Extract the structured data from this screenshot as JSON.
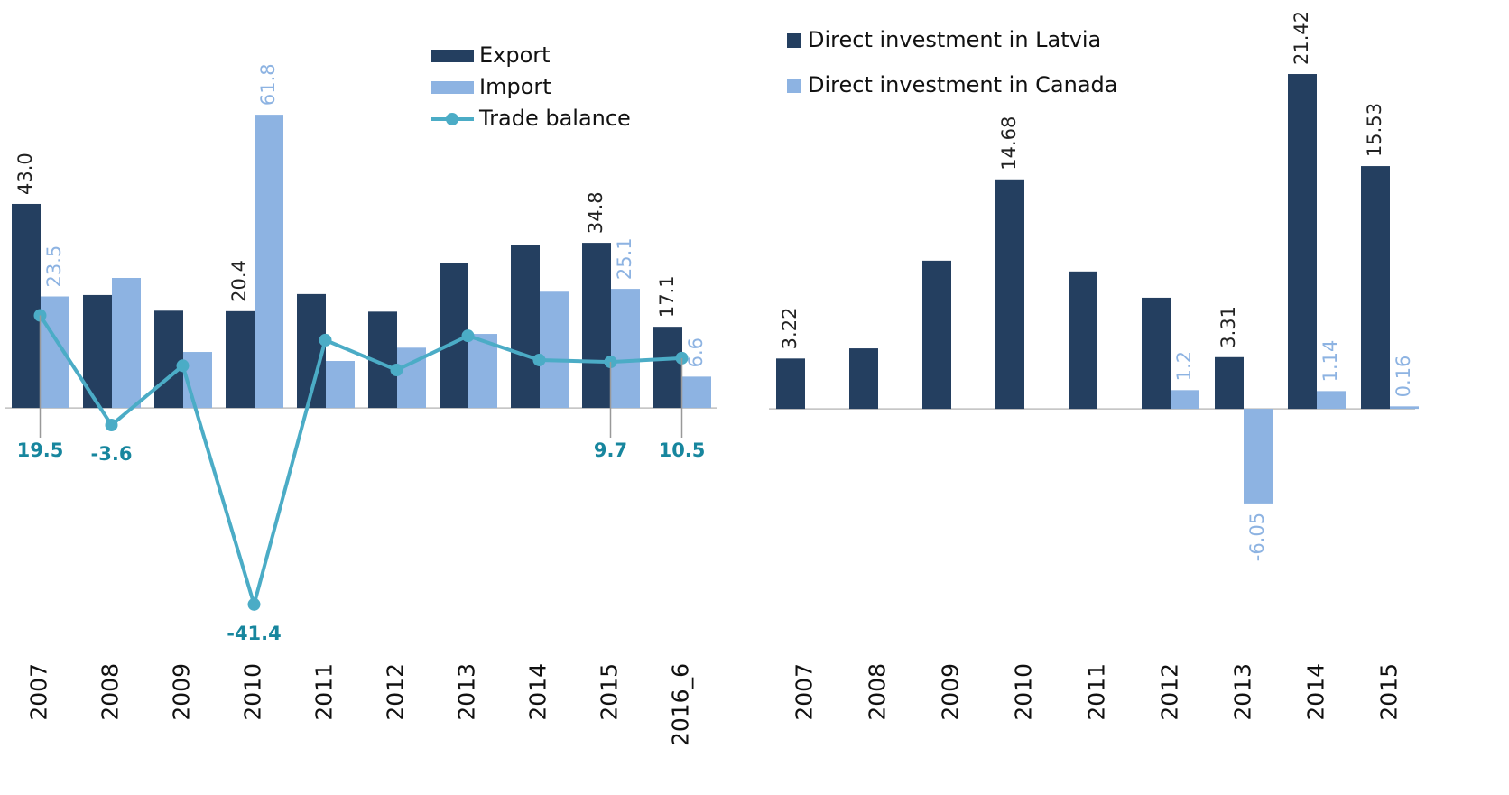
{
  "chart_data": [
    {
      "type": "bar",
      "categories": [
        "2007",
        "2008",
        "2009",
        "2010",
        "2011",
        "2012",
        "2013",
        "2014",
        "2015",
        "2016_6"
      ],
      "series": [
        {
          "name": "Export",
          "color": "#243f60",
          "values": [
            43.0,
            23.8,
            20.5,
            20.4,
            24.0,
            20.3,
            30.6,
            34.4,
            34.8,
            17.1
          ],
          "value_labels": [
            "43.0",
            null,
            null,
            "20.4",
            null,
            null,
            null,
            null,
            "34.8",
            "17.1"
          ]
        },
        {
          "name": "Import",
          "color": "#8db3e2",
          "values": [
            23.5,
            27.4,
            11.8,
            61.8,
            9.9,
            12.7,
            15.6,
            24.5,
            25.1,
            6.6
          ],
          "value_labels": [
            "23.5",
            null,
            null,
            "61.8",
            null,
            null,
            null,
            null,
            "25.1",
            "6.6"
          ]
        },
        {
          "name": "Trade balance",
          "type": "line",
          "color": "#4bacc6",
          "values": [
            19.5,
            -3.6,
            8.9,
            -41.4,
            14.3,
            8.0,
            15.2,
            10.1,
            9.7,
            10.5
          ],
          "value_labels": [
            "19.5",
            "-3.6",
            null,
            "-41.4",
            null,
            null,
            null,
            null,
            "9.7",
            "10.5"
          ]
        }
      ],
      "ylim": [
        -50,
        70
      ],
      "legend": "top-right"
    },
    {
      "type": "bar",
      "categories": [
        "2007",
        "2008",
        "2009",
        "2010",
        "2011",
        "2012",
        "2013",
        "2014",
        "2015"
      ],
      "series": [
        {
          "name": "Direct investment in Latvia",
          "color": "#243f60",
          "values": [
            3.22,
            3.87,
            9.48,
            14.68,
            8.79,
            7.11,
            3.31,
            21.42,
            15.53
          ],
          "value_labels": [
            "3.22",
            null,
            null,
            "14.68",
            null,
            null,
            "3.31",
            "21.42",
            "15.53"
          ]
        },
        {
          "name": "Direct investment in Canada",
          "color": "#8db3e2",
          "values": [
            null,
            null,
            null,
            null,
            null,
            1.2,
            -6.05,
            1.14,
            0.16
          ]
        }
      ],
      "ylim": [
        -12,
        25
      ],
      "legend": "top-left"
    }
  ]
}
